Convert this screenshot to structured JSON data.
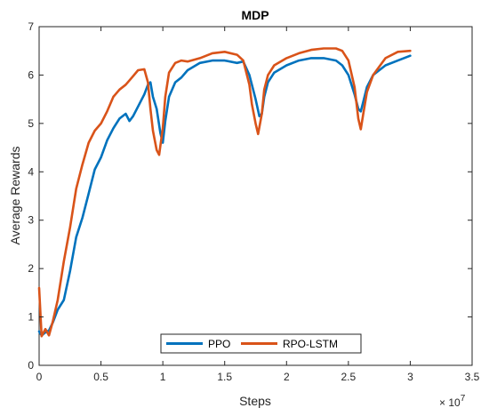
{
  "chart_data": {
    "type": "line",
    "title": "MDP",
    "xlabel": "Steps",
    "ylabel": "Average Rewards",
    "x_exponent_label": "× 10",
    "x_exponent_power": "7",
    "xlim": [
      0,
      3.5
    ],
    "ylim": [
      0,
      7
    ],
    "xticks": [
      "0",
      "0.5",
      "1",
      "1.5",
      "2",
      "2.5",
      "3",
      "3.5"
    ],
    "yticks": [
      "0",
      "1",
      "2",
      "3",
      "4",
      "5",
      "6",
      "7"
    ],
    "grid": false,
    "legend_position": "bottom-center",
    "series": [
      {
        "name": "PPO",
        "color": "#0072BD",
        "x": [
          0.0,
          0.02,
          0.05,
          0.08,
          0.11,
          0.15,
          0.2,
          0.25,
          0.3,
          0.35,
          0.4,
          0.45,
          0.5,
          0.55,
          0.6,
          0.65,
          0.7,
          0.73,
          0.76,
          0.8,
          0.85,
          0.88,
          0.9,
          0.92,
          0.95,
          0.98,
          1.0,
          1.02,
          1.05,
          1.1,
          1.15,
          1.2,
          1.3,
          1.4,
          1.5,
          1.6,
          1.65,
          1.7,
          1.72,
          1.75,
          1.78,
          1.8,
          1.82,
          1.85,
          1.9,
          2.0,
          2.1,
          2.2,
          2.3,
          2.4,
          2.45,
          2.5,
          2.55,
          2.58,
          2.6,
          2.62,
          2.65,
          2.7,
          2.8,
          2.9,
          3.0
        ],
        "values": [
          0.7,
          0.62,
          0.68,
          0.72,
          0.88,
          1.15,
          1.35,
          1.95,
          2.65,
          3.05,
          3.55,
          4.05,
          4.3,
          4.65,
          4.9,
          5.1,
          5.2,
          5.05,
          5.15,
          5.35,
          5.6,
          5.8,
          5.85,
          5.55,
          5.3,
          4.8,
          4.6,
          5.05,
          5.55,
          5.85,
          5.95,
          6.1,
          6.25,
          6.3,
          6.3,
          6.25,
          6.28,
          6.0,
          5.8,
          5.5,
          5.15,
          5.2,
          5.55,
          5.85,
          6.05,
          6.2,
          6.3,
          6.35,
          6.35,
          6.3,
          6.2,
          6.0,
          5.6,
          5.3,
          5.25,
          5.45,
          5.75,
          6.0,
          6.2,
          6.3,
          6.4
        ]
      },
      {
        "name": "RPO-LSTM",
        "color": "#D95319",
        "x": [
          0.0,
          0.02,
          0.05,
          0.08,
          0.11,
          0.15,
          0.2,
          0.25,
          0.3,
          0.35,
          0.4,
          0.45,
          0.5,
          0.55,
          0.6,
          0.65,
          0.7,
          0.75,
          0.8,
          0.85,
          0.88,
          0.9,
          0.92,
          0.95,
          0.97,
          1.0,
          1.02,
          1.05,
          1.1,
          1.15,
          1.2,
          1.3,
          1.4,
          1.5,
          1.6,
          1.65,
          1.7,
          1.72,
          1.75,
          1.77,
          1.8,
          1.82,
          1.85,
          1.9,
          2.0,
          2.1,
          2.2,
          2.3,
          2.4,
          2.45,
          2.5,
          2.55,
          2.58,
          2.6,
          2.62,
          2.65,
          2.7,
          2.8,
          2.9,
          3.0
        ],
        "values": [
          1.6,
          0.6,
          0.75,
          0.62,
          0.9,
          1.35,
          2.15,
          2.85,
          3.65,
          4.15,
          4.6,
          4.85,
          5.0,
          5.25,
          5.55,
          5.7,
          5.8,
          5.95,
          6.1,
          6.12,
          5.85,
          5.3,
          4.85,
          4.45,
          4.35,
          4.9,
          5.55,
          6.05,
          6.25,
          6.3,
          6.28,
          6.35,
          6.45,
          6.48,
          6.42,
          6.3,
          5.8,
          5.4,
          5.0,
          4.78,
          5.2,
          5.7,
          6.0,
          6.2,
          6.35,
          6.45,
          6.52,
          6.55,
          6.55,
          6.5,
          6.3,
          5.75,
          5.1,
          4.88,
          5.2,
          5.65,
          6.0,
          6.35,
          6.48,
          6.5
        ]
      }
    ]
  }
}
